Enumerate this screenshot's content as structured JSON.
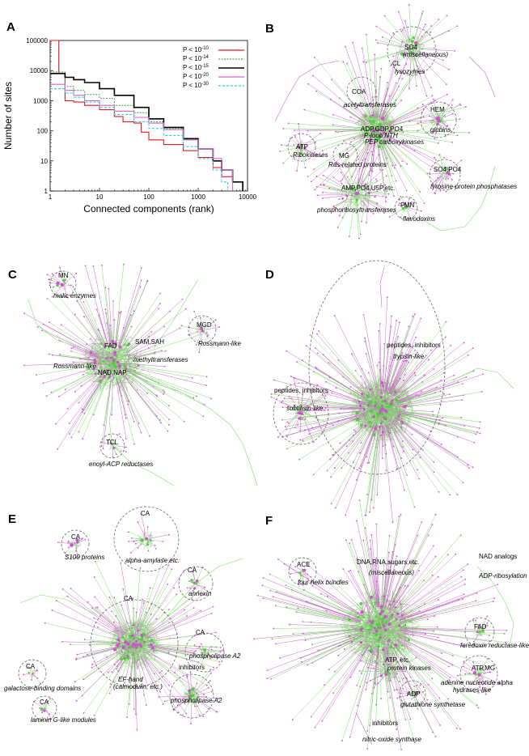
{
  "panel_labels": [
    "A",
    "B",
    "C",
    "D",
    "E",
    "F"
  ],
  "chart_data": {
    "type": "line",
    "xlabel": "Connected components (rank)",
    "ylabel": "Number of sites",
    "xscale": "log",
    "yscale": "log",
    "xlim": [
      1,
      10000
    ],
    "ylim": [
      1,
      100000
    ],
    "xticks": [
      "1",
      "10",
      "100",
      "1000",
      "10000"
    ],
    "yticks": [
      "1",
      "10",
      "100",
      "1000",
      "10000",
      "100000"
    ],
    "legend_position": "top-right",
    "series": [
      {
        "name": "P < 10",
        "exp": "-10",
        "color": "#e41a1c",
        "dash": "",
        "x": [
          1,
          1.5,
          2,
          3,
          5,
          10,
          20,
          30,
          50,
          70,
          100,
          200,
          500,
          1000,
          2000,
          3000,
          5000,
          8000
        ],
        "y": [
          100000,
          8000,
          1000,
          900,
          700,
          500,
          300,
          200,
          180,
          90,
          50,
          35,
          22,
          13,
          6,
          3,
          2,
          1
        ]
      },
      {
        "name": "P < 10",
        "exp": "-14",
        "color": "#4daf4a",
        "dash": "2 1.5",
        "x": [
          1,
          2,
          3,
          5,
          10,
          20,
          50,
          100,
          200,
          500,
          1000,
          2000,
          3000,
          5000,
          8000
        ],
        "y": [
          9000,
          3000,
          2200,
          1600,
          1200,
          700,
          400,
          200,
          120,
          50,
          25,
          10,
          5,
          2,
          1
        ]
      },
      {
        "name": "P < 10",
        "exp": "-15",
        "color": "#000000",
        "dash": "",
        "x": [
          1,
          2,
          3,
          5,
          10,
          20,
          50,
          100,
          200,
          500,
          1000,
          2000,
          3000,
          5000,
          8000
        ],
        "y": [
          8000,
          6000,
          5000,
          4000,
          2500,
          1500,
          600,
          250,
          130,
          55,
          25,
          10,
          5,
          2,
          1
        ]
      },
      {
        "name": "P < 10",
        "exp": "-20",
        "color": "#cc66cc",
        "dash": "",
        "x": [
          1,
          2,
          3,
          5,
          10,
          20,
          50,
          100,
          200,
          500,
          1000,
          2000,
          3000,
          5000
        ],
        "y": [
          3500,
          2200,
          1500,
          1000,
          700,
          450,
          280,
          180,
          110,
          50,
          25,
          12,
          5,
          1
        ]
      },
      {
        "name": "P < 10",
        "exp": "-30",
        "color": "#33ccdd",
        "dash": "3 2",
        "x": [
          1,
          2,
          3,
          5,
          10,
          20,
          50,
          100,
          200,
          500,
          1000,
          2000,
          3000,
          4000
        ],
        "y": [
          2500,
          1800,
          1300,
          900,
          600,
          350,
          200,
          120,
          70,
          30,
          12,
          5,
          2,
          1
        ]
      }
    ]
  },
  "panels": {
    "B": [
      {
        "text": "SO4",
        "sub": "(miscellaneous)"
      },
      {
        "text": "CL",
        "sub": "lysozymes"
      },
      {
        "text": "COA",
        "sub": "acetyltransferases"
      },
      {
        "text": "HEM",
        "sub": "globins"
      },
      {
        "text": "ADP,GDP,PO4",
        "sub": "P-loop NTH"
      },
      {
        "text": "",
        "sub": "PEP carboxykinases"
      },
      {
        "text": "ATP",
        "sub": "Ribokinases"
      },
      {
        "text": "MG",
        "sub": "Ras-related proteins"
      },
      {
        "text": "SO4,PO4",
        "sub": "tyrosine-protein phosphatases"
      },
      {
        "text": "AMP,PO4,U5P,etc.",
        "sub": "phosphoribosyltransferases"
      },
      {
        "text": "FMN",
        "sub": "flavodoxins"
      }
    ],
    "C": [
      {
        "text": "MN",
        "sub": "malic enzymes"
      },
      {
        "text": "MGD",
        "sub": "Rossmann-like"
      },
      {
        "text": "FAD",
        "sub": ""
      },
      {
        "text": "SAM,SAH",
        "sub": "methyltransferases"
      },
      {
        "text": "",
        "sub": "Rossmann-like"
      },
      {
        "text": "NAD,NAP",
        "sub": ""
      },
      {
        "text": "TCL",
        "sub": "enoyl-ACP reductases"
      }
    ],
    "D": [
      {
        "text": "peptides, inhibitors",
        "sub": "trypsin-like"
      },
      {
        "text": "peptides, inhibitors",
        "sub": "subtilisin-like"
      }
    ],
    "E": [
      {
        "text": "CA",
        "sub": "S100 proteins"
      },
      {
        "text": "CA",
        "sub": "alpha-amylase etc."
      },
      {
        "text": "CA",
        "sub": "annexin"
      },
      {
        "text": "CA",
        "sub": "EF-hand"
      },
      {
        "text": "",
        "sub": "(calmodulin, etc.)"
      },
      {
        "text": "CA",
        "sub": "phospholipase A2"
      },
      {
        "text": "inhibitors",
        "sub": "phospholipase A2"
      },
      {
        "text": "CA",
        "sub": "galactose-binding domains"
      },
      {
        "text": "CA",
        "sub": "laminin G-like modules"
      }
    ],
    "F": [
      {
        "text": "ACE",
        "sub": "four helix bundles"
      },
      {
        "text": "DNA,RNA,sugars,etc.",
        "sub": "(miscellaneous)"
      },
      {
        "text": "NAD analogs",
        "sub": "ADP-ribosylation"
      },
      {
        "text": "FAD",
        "sub": "feredoxin reductase-like"
      },
      {
        "text": "ATP, etc.",
        "sub": "protein kinases"
      },
      {
        "text": "ATP,MG",
        "sub": "adenine nucleotide alpha"
      },
      {
        "text": "",
        "sub": "hydrases-like"
      },
      {
        "text": "ADP",
        "sub": "glutathione synthetase"
      },
      {
        "text": "inhibitors",
        "sub": "nitric-oxide synthase"
      }
    ]
  },
  "colors": {
    "green_edge": "#7ddc6a",
    "magenta_edge": "#cc66cc",
    "node": "#cc55cc"
  }
}
